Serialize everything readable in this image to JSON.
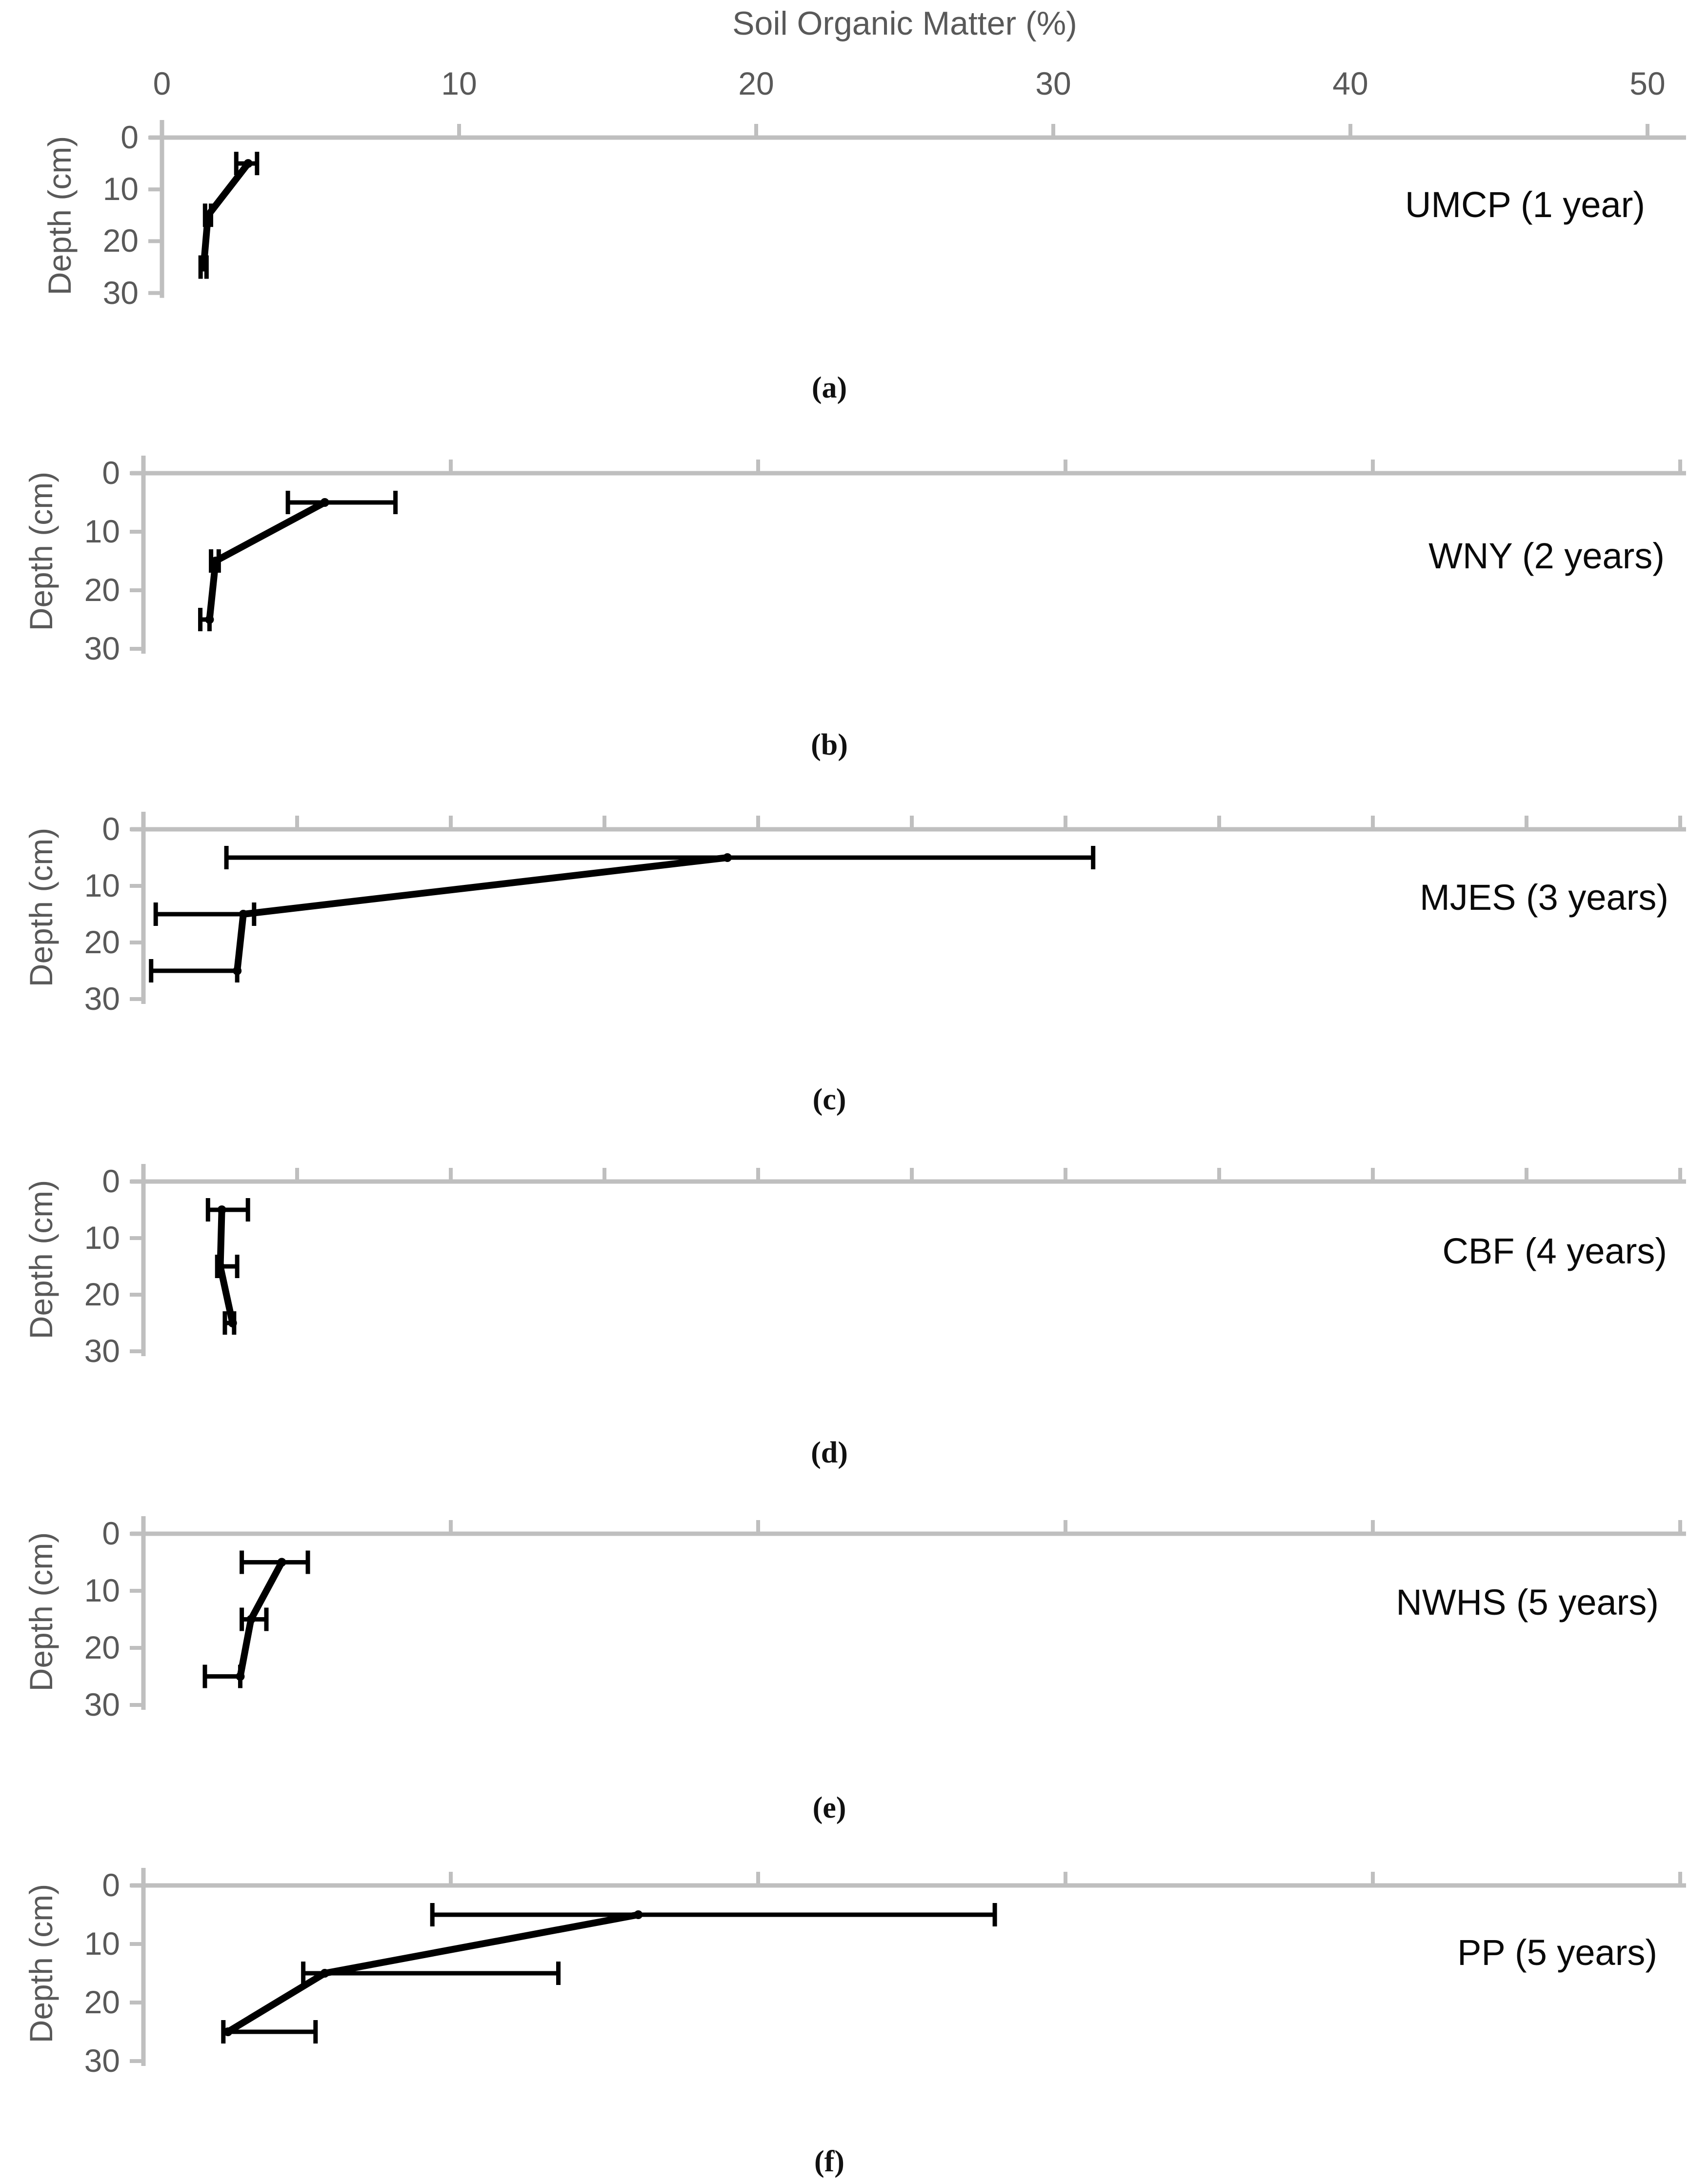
{
  "title": "Soil Organic Matter (%)",
  "y_axis_title": "Depth (cm)",
  "x_axis": {
    "tick_labels": [
      "0",
      "10",
      "20",
      "30",
      "40",
      "50"
    ],
    "tick_values": [
      0,
      10,
      20,
      30,
      40,
      50
    ],
    "range": [
      0,
      50
    ]
  },
  "depth_axis": {
    "tick_labels": [
      "0",
      "10",
      "20",
      "30"
    ],
    "tick_values": [
      0,
      10,
      20,
      30
    ],
    "range": [
      0,
      30
    ]
  },
  "colors": {
    "axis_line": "#BFBFBF",
    "axis_text": "#595959",
    "data": "#000000",
    "background": "#FFFFFF"
  },
  "chart_data": [
    {
      "type": "line",
      "panel_label": "(a)",
      "site_label": "UMCP (1 year)",
      "xlabel": "Soil Organic Matter (%)",
      "ylabel": "Depth (cm)",
      "x_range": [
        0,
        50
      ],
      "x_tick_step": 10,
      "depth_range": [
        0,
        30
      ],
      "points": [
        {
          "depth": 5,
          "som": 2.9,
          "err_lo": 2.5,
          "err_hi": 3.2
        },
        {
          "depth": 15,
          "som": 1.55,
          "err_lo": 1.45,
          "err_hi": 1.65
        },
        {
          "depth": 25,
          "som": 1.4,
          "err_lo": 1.3,
          "err_hi": 1.5
        }
      ]
    },
    {
      "type": "line",
      "panel_label": "(b)",
      "site_label": "WNY (2 years)",
      "xlabel": "Soil Organic Matter (%)",
      "ylabel": "Depth (cm)",
      "x_range": [
        0,
        50
      ],
      "x_tick_step": 10,
      "depth_range": [
        0,
        30
      ],
      "points": [
        {
          "depth": 5,
          "som": 5.9,
          "err_lo": 4.7,
          "err_hi": 8.2
        },
        {
          "depth": 15,
          "som": 2.35,
          "err_lo": 2.2,
          "err_hi": 2.45
        },
        {
          "depth": 25,
          "som": 2.15,
          "err_lo": 1.85,
          "err_hi": 2.15
        }
      ]
    },
    {
      "type": "line",
      "panel_label": "(c)",
      "site_label": "MJES (3 years)",
      "xlabel": "Soil Organic Matter (%)",
      "ylabel": "Depth (cm)",
      "x_range": [
        0,
        50
      ],
      "x_tick_step": 5,
      "depth_range": [
        0,
        30
      ],
      "points": [
        {
          "depth": 5,
          "som": 19.0,
          "err_lo": 2.7,
          "err_hi": 30.9
        },
        {
          "depth": 15,
          "som": 3.25,
          "err_lo": 0.4,
          "err_hi": 3.6
        },
        {
          "depth": 25,
          "som": 3.05,
          "err_lo": 0.25,
          "err_hi": 3.05
        }
      ]
    },
    {
      "type": "line",
      "panel_label": "(d)",
      "site_label": "CBF (4 years)",
      "xlabel": "Soil Organic Matter (%)",
      "ylabel": "Depth (cm)",
      "x_range": [
        0,
        50
      ],
      "x_tick_step": 5,
      "depth_range": [
        0,
        30
      ],
      "points": [
        {
          "depth": 5,
          "som": 2.55,
          "err_lo": 2.1,
          "err_hi": 3.4
        },
        {
          "depth": 15,
          "som": 2.5,
          "err_lo": 2.4,
          "err_hi": 3.05
        },
        {
          "depth": 25,
          "som": 2.9,
          "err_lo": 2.65,
          "err_hi": 2.95
        }
      ]
    },
    {
      "type": "line",
      "panel_label": "(e)",
      "site_label": "NWHS (5 years)",
      "xlabel": "Soil Organic Matter (%)",
      "ylabel": "Depth (cm)",
      "x_range": [
        0,
        50
      ],
      "x_tick_step": 10,
      "depth_range": [
        0,
        30
      ],
      "points": [
        {
          "depth": 5,
          "som": 4.5,
          "err_lo": 3.2,
          "err_hi": 5.35
        },
        {
          "depth": 15,
          "som": 3.5,
          "err_lo": 3.2,
          "err_hi": 4.0
        },
        {
          "depth": 25,
          "som": 3.15,
          "err_lo": 2.0,
          "err_hi": 3.15
        }
      ]
    },
    {
      "type": "line",
      "panel_label": "(f)",
      "site_label": "PP (5 years)",
      "xlabel": "Soil Organic Matter (%)",
      "ylabel": "Depth (cm)",
      "x_range": [
        0,
        50
      ],
      "x_tick_step": 10,
      "depth_range": [
        0,
        30
      ],
      "points": [
        {
          "depth": 5,
          "som": 16.1,
          "err_lo": 9.4,
          "err_hi": 27.7
        },
        {
          "depth": 15,
          "som": 5.9,
          "err_lo": 5.2,
          "err_hi": 13.5
        },
        {
          "depth": 25,
          "som": 2.75,
          "err_lo": 2.6,
          "err_hi": 5.6
        }
      ]
    }
  ]
}
